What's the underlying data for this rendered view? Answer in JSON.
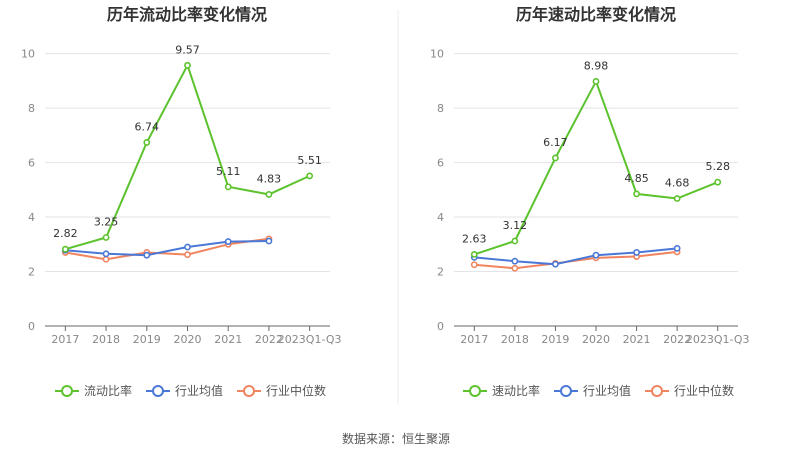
{
  "chart_data": [
    {
      "type": "line",
      "title": "历年流动比率变化情况",
      "categories": [
        "2017",
        "2018",
        "2019",
        "2020",
        "2021",
        "2022",
        "2023Q1-Q3"
      ],
      "yticks": [
        0,
        2,
        4,
        6,
        8,
        10
      ],
      "ylim": [
        0,
        10.5
      ],
      "series": [
        {
          "name": "流动比率",
          "color": "#5cc22d",
          "values": [
            2.82,
            3.25,
            6.74,
            9.57,
            5.11,
            4.83,
            5.51
          ],
          "labels": [
            "2.82",
            "3.25",
            "6.74",
            "9.57",
            "5.11",
            "4.83",
            "5.51"
          ]
        },
        {
          "name": "行业均值",
          "color": "#4a78d6",
          "values": [
            2.78,
            2.65,
            2.6,
            2.9,
            3.1,
            3.12,
            null
          ],
          "labels": []
        },
        {
          "name": "行业中位数",
          "color": "#f0845f",
          "values": [
            2.7,
            2.45,
            2.7,
            2.62,
            3.0,
            3.2,
            null
          ],
          "labels": []
        }
      ]
    },
    {
      "type": "line",
      "title": "历年速动比率变化情况",
      "categories": [
        "2017",
        "2018",
        "2019",
        "2020",
        "2021",
        "2022",
        "2023Q1-Q3"
      ],
      "yticks": [
        0,
        2,
        4,
        6,
        8,
        10
      ],
      "ylim": [
        0,
        10.5
      ],
      "series": [
        {
          "name": "速动比率",
          "color": "#5cc22d",
          "values": [
            2.63,
            3.12,
            6.17,
            8.98,
            4.85,
            4.68,
            5.28
          ],
          "labels": [
            "2.63",
            "3.12",
            "6.17",
            "8.98",
            "4.85",
            "4.68",
            "5.28"
          ]
        },
        {
          "name": "行业均值",
          "color": "#4a78d6",
          "values": [
            2.52,
            2.38,
            2.27,
            2.6,
            2.7,
            2.85,
            null
          ],
          "labels": []
        },
        {
          "name": "行业中位数",
          "color": "#f0845f",
          "values": [
            2.25,
            2.12,
            2.3,
            2.5,
            2.55,
            2.72,
            null
          ],
          "labels": []
        }
      ]
    }
  ],
  "footer": {
    "source": "数据来源：恒生聚源"
  }
}
